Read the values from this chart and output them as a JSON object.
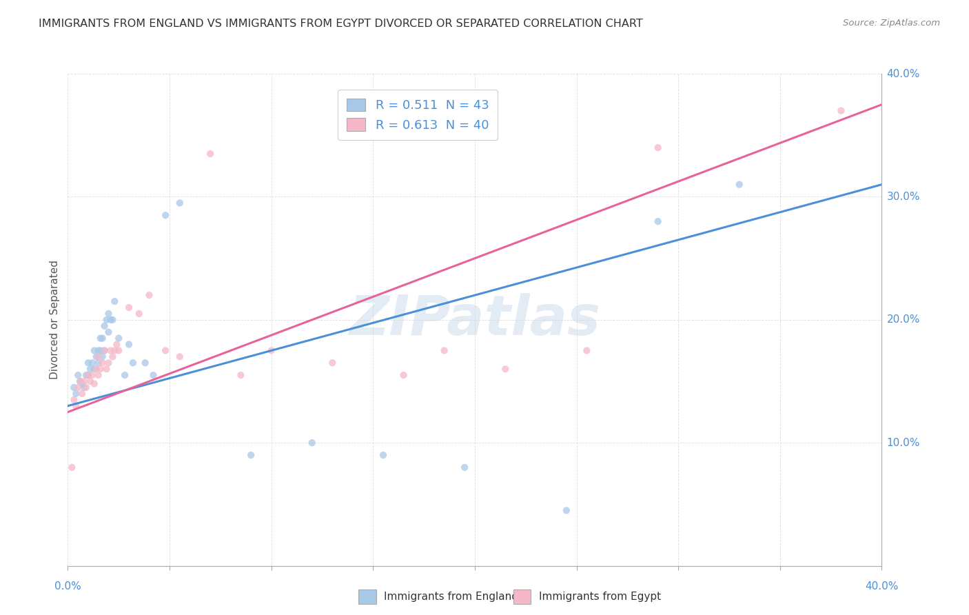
{
  "title": "IMMIGRANTS FROM ENGLAND VS IMMIGRANTS FROM EGYPT DIVORCED OR SEPARATED CORRELATION CHART",
  "source": "Source: ZipAtlas.com",
  "ylabel": "Divorced or Separated",
  "xlim": [
    0.0,
    0.4
  ],
  "ylim": [
    0.0,
    0.4
  ],
  "england_color": "#a8c8e8",
  "egypt_color": "#f4b8c8",
  "england_line_color": "#4a90d9",
  "egypt_line_color": "#e8629a",
  "R_england": 0.511,
  "N_england": 43,
  "R_egypt": 0.613,
  "N_egypt": 40,
  "watermark": "ZIPatlas",
  "england_line_start": 0.13,
  "england_line_end": 0.31,
  "egypt_line_start": 0.125,
  "egypt_line_end": 0.375,
  "england_scatter_x": [
    0.003,
    0.004,
    0.005,
    0.006,
    0.007,
    0.008,
    0.009,
    0.01,
    0.01,
    0.011,
    0.012,
    0.013,
    0.013,
    0.014,
    0.015,
    0.015,
    0.016,
    0.016,
    0.017,
    0.017,
    0.018,
    0.018,
    0.019,
    0.02,
    0.02,
    0.021,
    0.022,
    0.023,
    0.025,
    0.028,
    0.03,
    0.032,
    0.038,
    0.042,
    0.048,
    0.055,
    0.09,
    0.12,
    0.155,
    0.195,
    0.245,
    0.29,
    0.33
  ],
  "england_scatter_y": [
    0.145,
    0.14,
    0.155,
    0.15,
    0.148,
    0.145,
    0.155,
    0.155,
    0.165,
    0.16,
    0.165,
    0.16,
    0.175,
    0.17,
    0.175,
    0.165,
    0.175,
    0.185,
    0.17,
    0.185,
    0.175,
    0.195,
    0.2,
    0.19,
    0.205,
    0.2,
    0.2,
    0.215,
    0.185,
    0.155,
    0.18,
    0.165,
    0.165,
    0.155,
    0.285,
    0.295,
    0.09,
    0.1,
    0.09,
    0.08,
    0.045,
    0.28,
    0.31
  ],
  "egypt_scatter_x": [
    0.002,
    0.003,
    0.004,
    0.005,
    0.006,
    0.007,
    0.008,
    0.009,
    0.01,
    0.011,
    0.012,
    0.013,
    0.014,
    0.015,
    0.015,
    0.016,
    0.017,
    0.018,
    0.019,
    0.02,
    0.021,
    0.022,
    0.023,
    0.024,
    0.025,
    0.03,
    0.035,
    0.04,
    0.048,
    0.055,
    0.07,
    0.085,
    0.1,
    0.13,
    0.165,
    0.185,
    0.215,
    0.255,
    0.29,
    0.38
  ],
  "egypt_scatter_y": [
    0.08,
    0.135,
    0.13,
    0.145,
    0.15,
    0.14,
    0.15,
    0.145,
    0.155,
    0.15,
    0.155,
    0.148,
    0.16,
    0.155,
    0.17,
    0.16,
    0.165,
    0.175,
    0.16,
    0.165,
    0.175,
    0.17,
    0.175,
    0.18,
    0.175,
    0.21,
    0.205,
    0.22,
    0.175,
    0.17,
    0.335,
    0.155,
    0.175,
    0.165,
    0.155,
    0.175,
    0.16,
    0.175,
    0.34,
    0.37
  ]
}
